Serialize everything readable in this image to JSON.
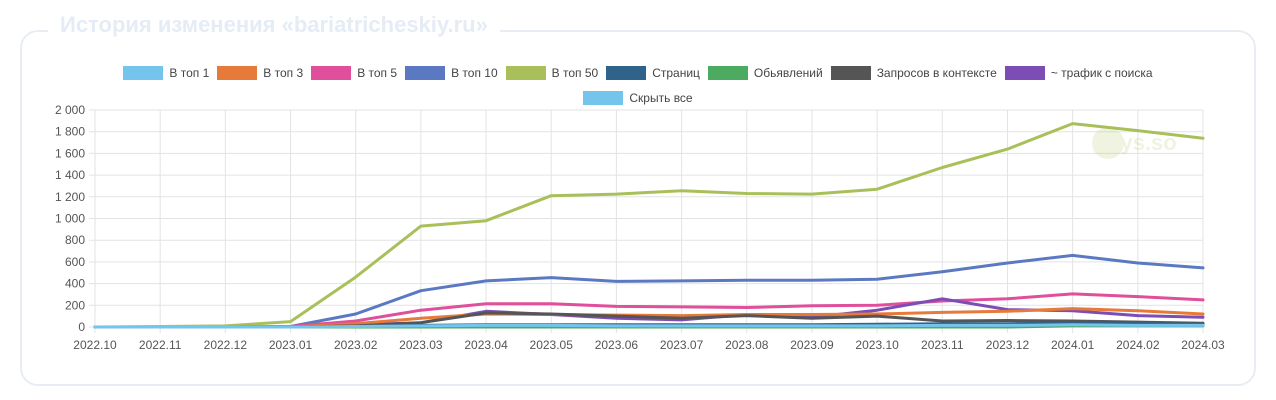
{
  "page": {
    "title": "История изменения «bariatricheskiy.ru»",
    "watermark": "keys.so"
  },
  "legend": [
    {
      "label": "В топ 1",
      "color": "#74c4ee"
    },
    {
      "label": "В топ 3",
      "color": "#e67a3a"
    },
    {
      "label": "В топ 5",
      "color": "#e04f9b"
    },
    {
      "label": "В топ 10",
      "color": "#5b79c2"
    },
    {
      "label": "В топ 50",
      "color": "#a9c05a"
    },
    {
      "label": "Страниц",
      "color": "#2f6389"
    },
    {
      "label": "Обьявлений",
      "color": "#4daa61"
    },
    {
      "label": "Запросов в контексте",
      "color": "#555555"
    },
    {
      "label": "~ трафик с поиска",
      "color": "#7d4db6"
    },
    {
      "label": "Скрыть все",
      "color": "#74c4ee"
    }
  ],
  "chart_data": {
    "type": "line",
    "categories": [
      "2022.10",
      "2022.11",
      "2022.12",
      "2023.01",
      "2023.02",
      "2023.03",
      "2023.04",
      "2023.05",
      "2023.06",
      "2023.07",
      "2023.08",
      "2023.09",
      "2023.10",
      "2023.11",
      "2023.12",
      "2024.01",
      "2024.02",
      "2024.03"
    ],
    "ylim": [
      0,
      2000
    ],
    "yticks": [
      0,
      200,
      400,
      600,
      800,
      1000,
      1200,
      1400,
      1600,
      1800,
      2000
    ],
    "ytick_labels": [
      "0",
      "200",
      "400",
      "600",
      "800",
      "1 000",
      "1 200",
      "1 400",
      "1 600",
      "1 800",
      "2 000"
    ],
    "grid": true,
    "legend_position": "top",
    "series": [
      {
        "name": "В топ 50",
        "color": "#a9c05a",
        "values": [
          0,
          5,
          10,
          50,
          460,
          930,
          980,
          1210,
          1225,
          1255,
          1230,
          1225,
          1270,
          1470,
          1640,
          1875,
          1810,
          1740
        ]
      },
      {
        "name": "В топ 10",
        "color": "#5b79c2",
        "values": [
          0,
          0,
          0,
          5,
          120,
          335,
          425,
          455,
          420,
          425,
          430,
          430,
          440,
          510,
          590,
          660,
          590,
          545
        ]
      },
      {
        "name": "В топ 5",
        "color": "#e04f9b",
        "values": [
          0,
          0,
          0,
          5,
          55,
          155,
          215,
          215,
          190,
          185,
          180,
          195,
          200,
          240,
          260,
          305,
          280,
          250
        ]
      },
      {
        "name": "~ трафик с поиска",
        "color": "#7d4db6",
        "values": [
          0,
          0,
          0,
          0,
          20,
          40,
          145,
          115,
          80,
          65,
          115,
          90,
          155,
          260,
          160,
          150,
          105,
          90
        ]
      },
      {
        "name": "В топ 3",
        "color": "#e67a3a",
        "values": [
          0,
          0,
          0,
          0,
          30,
          80,
          120,
          115,
          110,
          105,
          115,
          115,
          120,
          135,
          145,
          170,
          150,
          120
        ]
      },
      {
        "name": "Запросов в контексте",
        "color": "#555555",
        "values": [
          0,
          0,
          0,
          0,
          10,
          40,
          130,
          120,
          100,
          80,
          105,
          80,
          100,
          55,
          60,
          55,
          45,
          35
        ]
      },
      {
        "name": "Страниц",
        "color": "#2f6389",
        "values": [
          0,
          0,
          0,
          0,
          5,
          15,
          20,
          20,
          20,
          20,
          20,
          20,
          25,
          30,
          30,
          35,
          30,
          25
        ]
      },
      {
        "name": "Обьявлений",
        "color": "#4daa61",
        "values": [
          0,
          0,
          0,
          0,
          0,
          0,
          0,
          0,
          0,
          0,
          0,
          0,
          0,
          0,
          0,
          10,
          10,
          10
        ]
      },
      {
        "name": "В топ 1",
        "color": "#74c4ee",
        "values": [
          0,
          0,
          0,
          0,
          5,
          10,
          15,
          15,
          10,
          10,
          10,
          10,
          10,
          15,
          15,
          20,
          15,
          15
        ]
      }
    ]
  }
}
